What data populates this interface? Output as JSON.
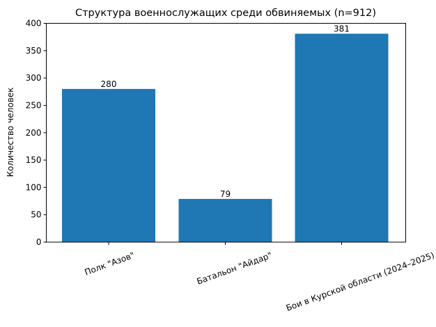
{
  "chart_data": {
    "type": "bar",
    "title": "Структура военнослужащих среди обвиняемых (n=912)",
    "xlabel": "",
    "ylabel": "Количество человек",
    "categories": [
      "Полк \"Азов\"",
      "Батальон \"Айдар\"",
      "Бои в Курской области (2024–2025)"
    ],
    "values": [
      280,
      79,
      381
    ],
    "data_labels": [
      "280",
      "79",
      "381"
    ],
    "ylim": [
      0,
      400
    ],
    "yticks": [
      0,
      50,
      100,
      150,
      200,
      250,
      300,
      350,
      400
    ],
    "grid": false,
    "legend": null,
    "bar_color": "#1f77b4",
    "xtick_rotation": 20
  }
}
